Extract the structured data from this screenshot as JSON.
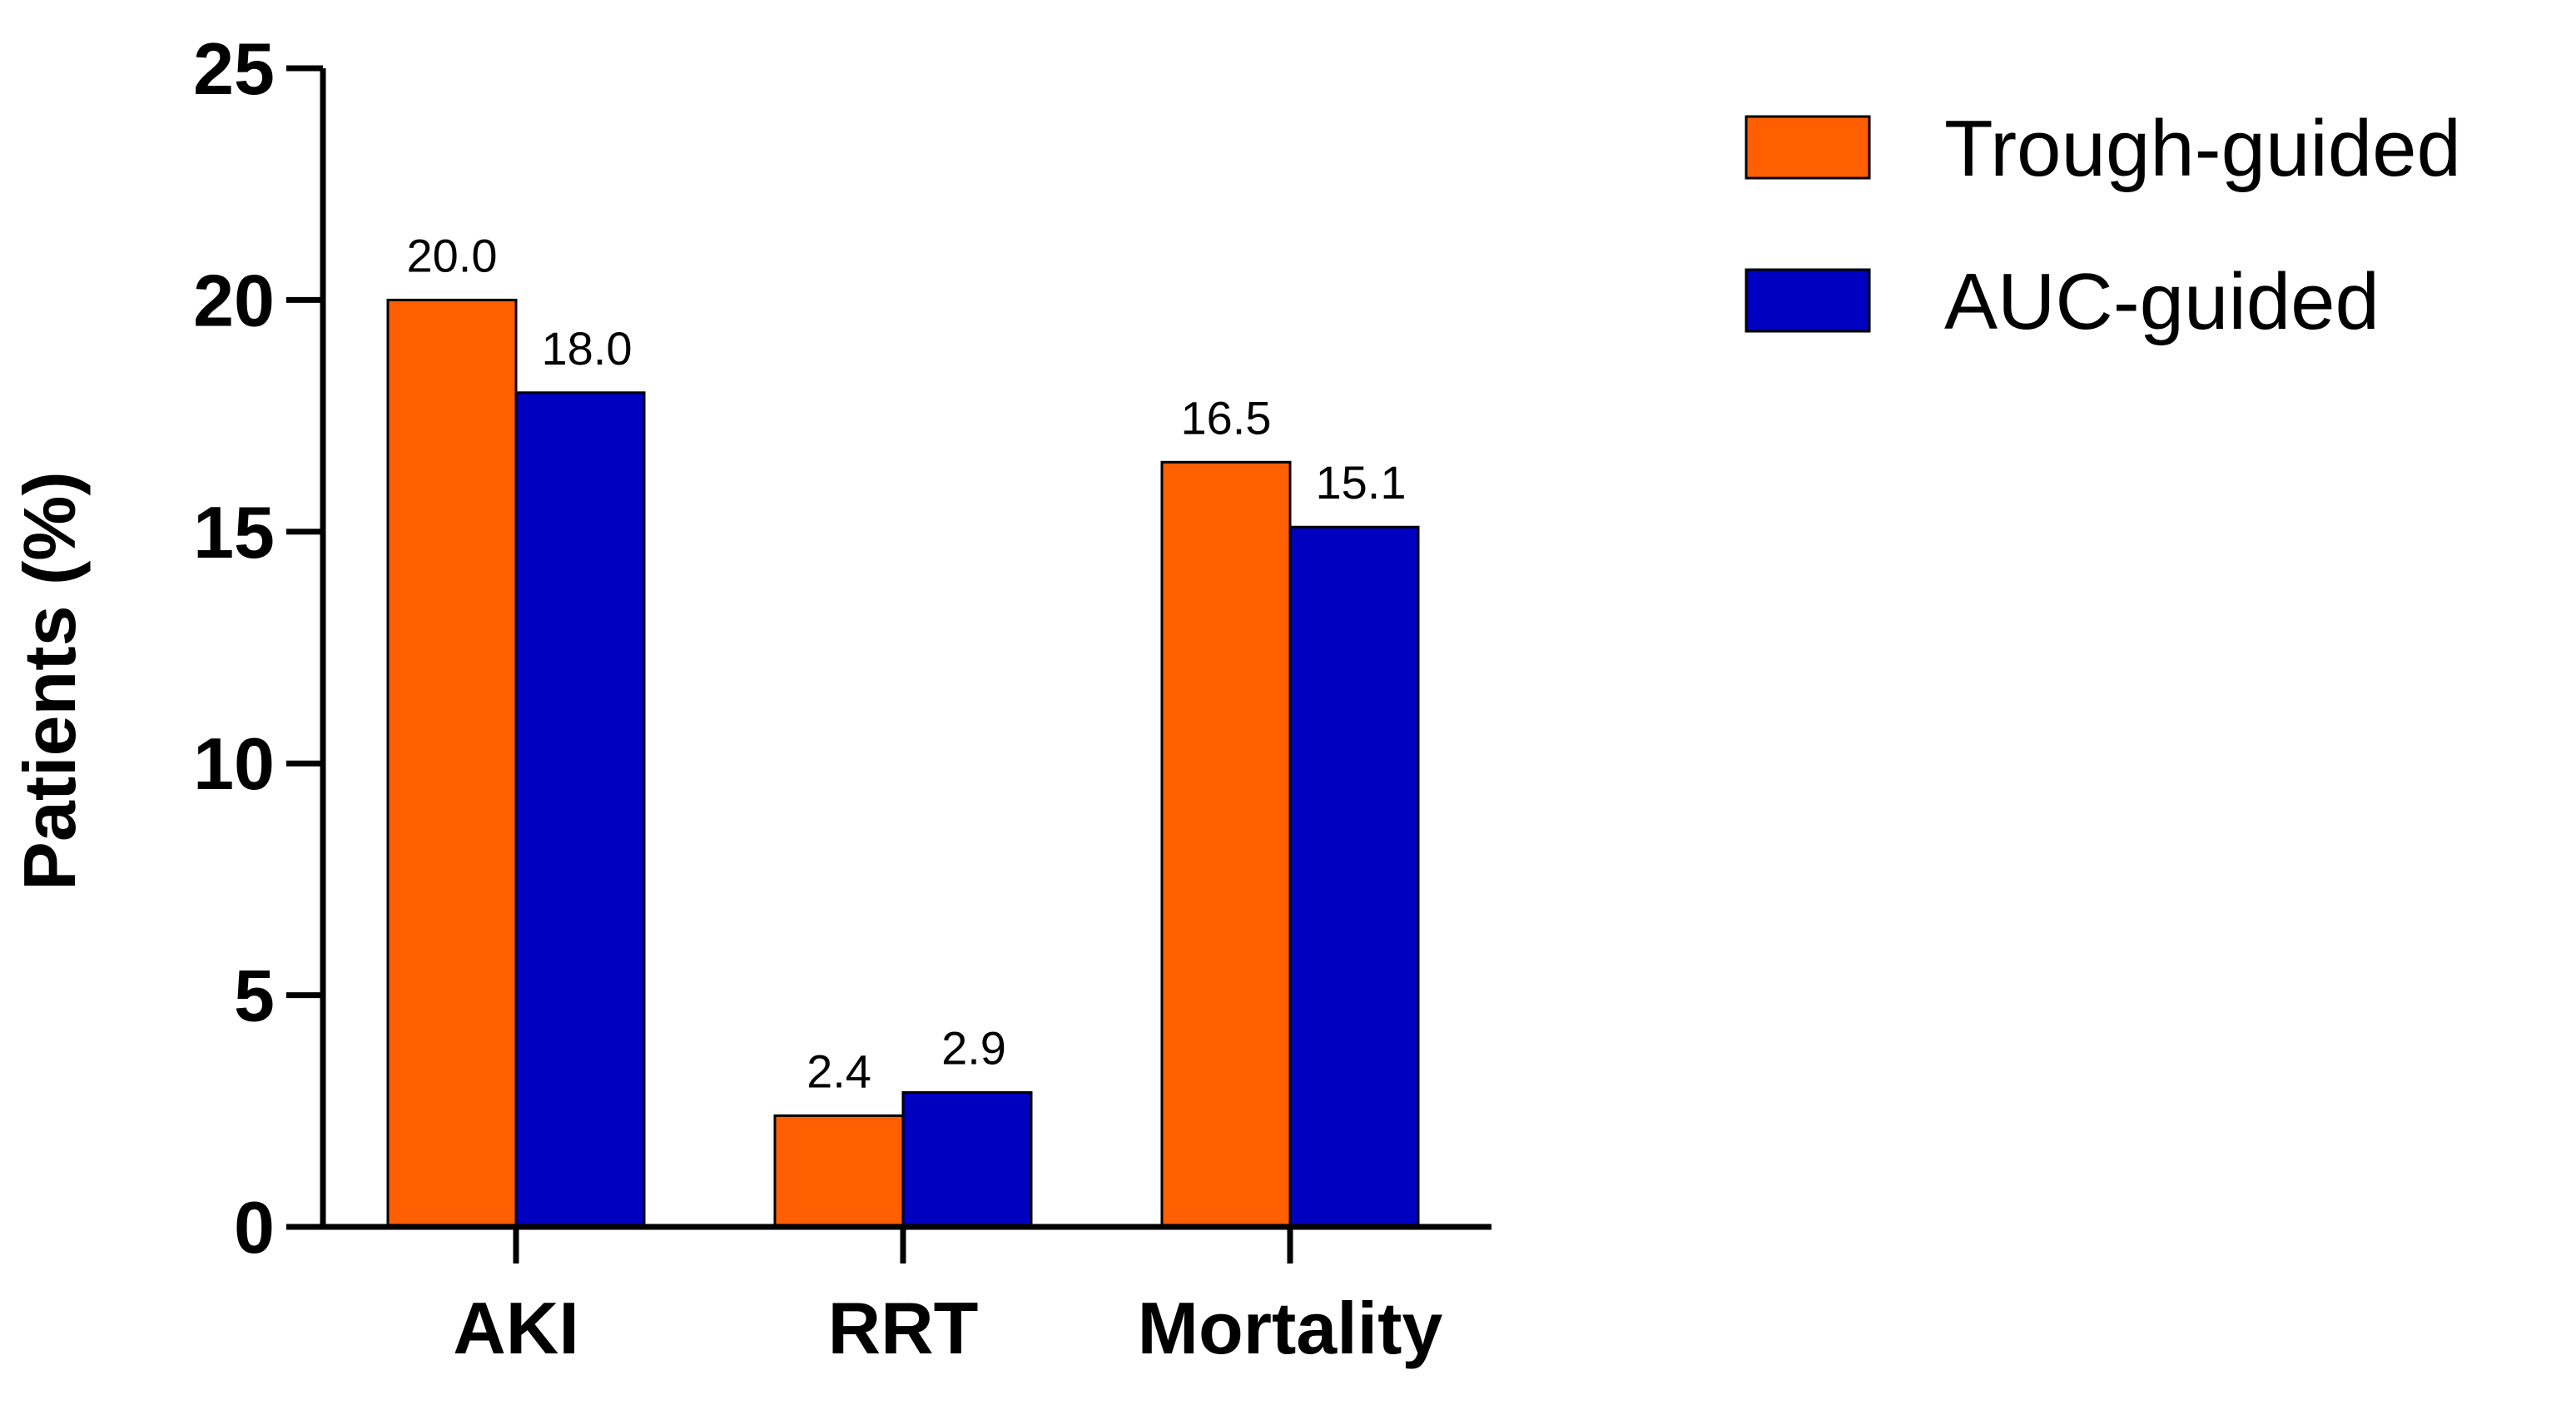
{
  "chart_data": {
    "type": "bar",
    "title": "",
    "xlabel": "",
    "ylabel": "Patients (%)",
    "ylim": [
      0,
      25
    ],
    "yticks": [
      0,
      5,
      10,
      15,
      20,
      25
    ],
    "categories": [
      "AKI",
      "RRT",
      "Mortality"
    ],
    "series": [
      {
        "name": "Trough-guided",
        "color": "#ff5f00",
        "values": [
          20.0,
          2.4,
          16.5
        ],
        "labels": [
          "20.0",
          "2.4",
          "16.5"
        ]
      },
      {
        "name": "AUC-guided",
        "color": "#0000c0",
        "values": [
          18.0,
          2.9,
          15.1
        ],
        "labels": [
          "18.0",
          "2.9",
          "15.1"
        ]
      }
    ],
    "legend": "top-right",
    "grid": false
  }
}
